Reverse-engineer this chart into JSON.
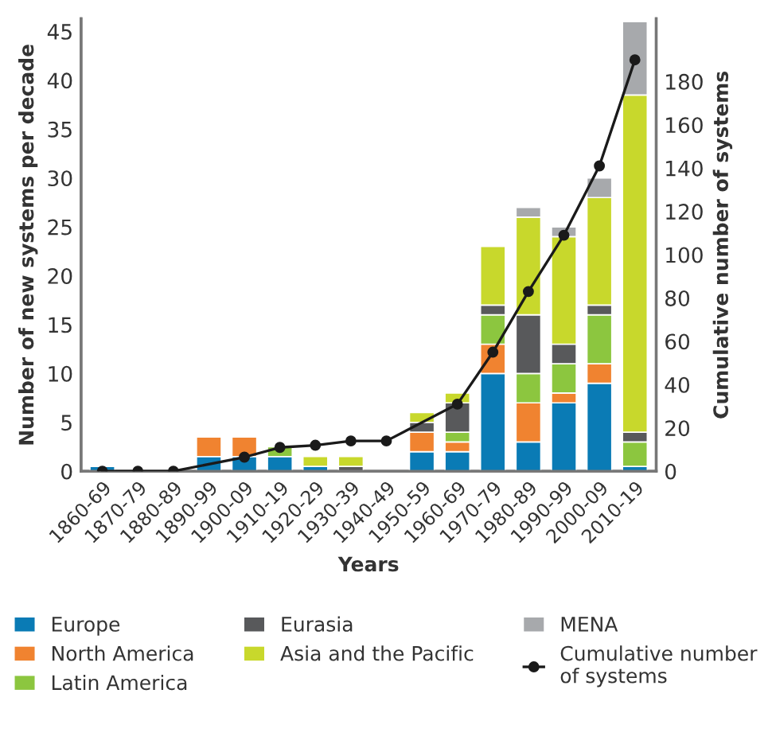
{
  "chart_data": {
    "type": "bar",
    "stacked": true,
    "xlabel": "Years",
    "ylabel": "Number of new systems per decade",
    "y2label": "Cumulative number of systems",
    "categories": [
      "1860-69",
      "1870-79",
      "1880-89",
      "1890-99",
      "1900-09",
      "1910-19",
      "1920-29",
      "1930-39",
      "1940-49",
      "1950-59",
      "1960-69",
      "1970-79",
      "1980-89",
      "1990-99",
      "2000-09",
      "2010-19"
    ],
    "series": [
      {
        "name": "Europe",
        "color": "#0a7bb5",
        "values": [
          0.5,
          null,
          null,
          1.5,
          1.5,
          1.5,
          0.5,
          null,
          null,
          2,
          2,
          10,
          3,
          7,
          9,
          0.5
        ]
      },
      {
        "name": "North America",
        "color": "#f08330",
        "values": [
          null,
          null,
          null,
          2,
          2,
          null,
          null,
          null,
          null,
          2,
          1,
          3,
          4,
          1,
          2,
          null
        ]
      },
      {
        "name": "Latin America",
        "color": "#8cc63f",
        "values": [
          null,
          null,
          null,
          null,
          null,
          1,
          null,
          null,
          null,
          null,
          1,
          3,
          3,
          3,
          5,
          2.5
        ]
      },
      {
        "name": "Eurasia",
        "color": "#58595b",
        "values": [
          null,
          null,
          null,
          null,
          null,
          null,
          null,
          0.5,
          null,
          1,
          3,
          1,
          6,
          2,
          1,
          1
        ]
      },
      {
        "name": "Asia and the Pacific",
        "color": "#c8d82c",
        "values": [
          null,
          null,
          null,
          null,
          null,
          null,
          1,
          1,
          null,
          1,
          1,
          6,
          10,
          11,
          11,
          34.5
        ]
      },
      {
        "name": "MENA",
        "color": "#a7a9ac",
        "values": [
          null,
          null,
          null,
          null,
          null,
          null,
          null,
          null,
          null,
          null,
          null,
          null,
          1,
          1,
          2,
          7.5
        ]
      },
      {
        "name": "Cumulative number\nof systems",
        "type": "line",
        "axis": "y2",
        "color": "#1a1a1a",
        "values": [
          0,
          0,
          0,
          null,
          6.5,
          11,
          12,
          14,
          14,
          null,
          31,
          55,
          83,
          109,
          141,
          190
        ]
      }
    ],
    "ylim": [
      0,
      46.3
    ],
    "yticks": [
      0,
      5,
      10,
      15,
      20,
      25,
      30,
      35,
      40,
      45
    ],
    "y2lim": [
      0,
      209
    ],
    "y2ticks": [
      0,
      20,
      40,
      60,
      80,
      100,
      120,
      140,
      160,
      180
    ],
    "marker": "circle",
    "legend": "bottom",
    "grid": false
  }
}
